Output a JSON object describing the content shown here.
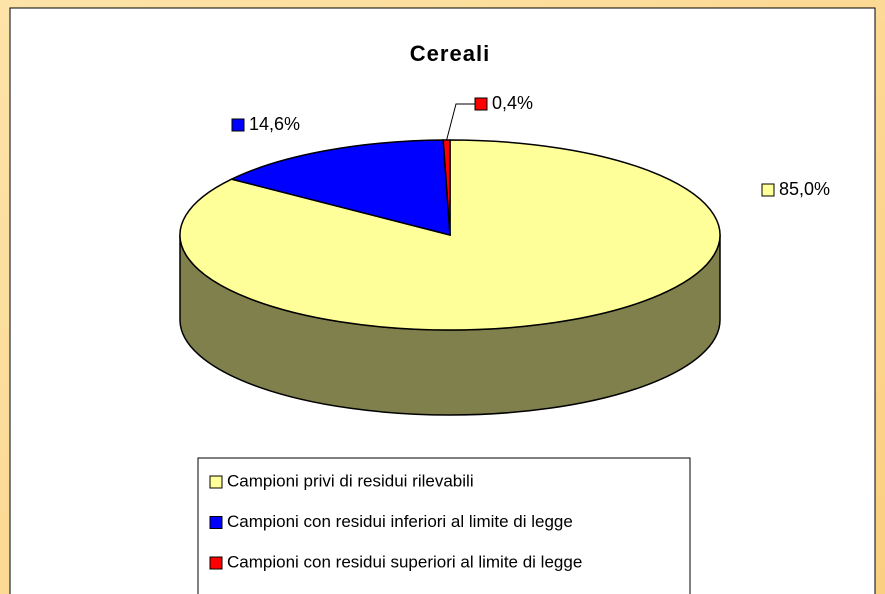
{
  "chart_data": {
    "type": "pie",
    "title": "Cereali",
    "categories": [
      "Campioni privi di residui rilevabili",
      "Campioni con residui inferiori al limite di legge",
      "Campioni con residui superiori al limite di legge"
    ],
    "values": [
      85.0,
      14.6,
      0.4
    ],
    "value_labels": [
      "85,0%",
      "14,6%",
      "0,4%"
    ],
    "colors": [
      "#ffff99",
      "#0000ff",
      "#ff0000"
    ],
    "three_d": true
  }
}
